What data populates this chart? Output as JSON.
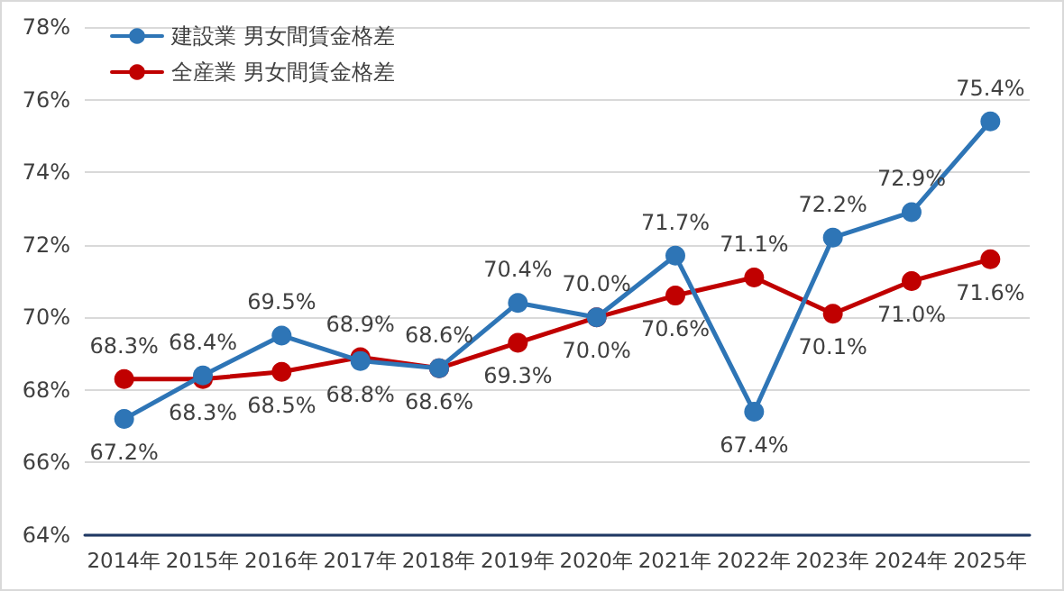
{
  "chart_data": {
    "type": "line",
    "categories": [
      "2014年",
      "2015年",
      "2016年",
      "2017年",
      "2018年",
      "2019年",
      "2020年",
      "2021年",
      "2022年",
      "2023年",
      "2024年",
      "2025年"
    ],
    "series": [
      {
        "name": "建設業 男女間賃金格差",
        "color": "#2e75b6",
        "values": [
          67.2,
          68.4,
          69.5,
          68.8,
          68.6,
          70.4,
          70.0,
          71.7,
          67.4,
          72.2,
          72.9,
          75.4
        ],
        "value_labels": [
          "67.2%",
          "68.4%",
          "69.5%",
          "68.8%",
          "68.6%",
          "70.4%",
          "70.0%",
          "71.7%",
          "67.4%",
          "72.2%",
          "72.9%",
          "75.4%"
        ]
      },
      {
        "name": "全産業 男女間賃金格差",
        "color": "#c00000",
        "values": [
          68.3,
          68.3,
          68.5,
          68.9,
          68.6,
          69.3,
          70.0,
          70.6,
          71.1,
          70.1,
          71.0,
          71.6
        ],
        "value_labels": [
          "68.3%",
          "68.3%",
          "68.5%",
          "68.9%",
          "68.6%",
          "69.3%",
          "70.0%",
          "70.6%",
          "71.1%",
          "70.1%",
          "71.0%",
          "71.6%"
        ]
      }
    ],
    "ylim": [
      64,
      78
    ],
    "yticks": [
      {
        "value": 64,
        "label": "64%"
      },
      {
        "value": 66,
        "label": "66%"
      },
      {
        "value": 68,
        "label": "68%"
      },
      {
        "value": 70,
        "label": "70%"
      },
      {
        "value": 72,
        "label": "72%"
      },
      {
        "value": 74,
        "label": "74%"
      },
      {
        "value": 76,
        "label": "76%"
      },
      {
        "value": 78,
        "label": "78%"
      }
    ],
    "grid": "y",
    "legend": "top left",
    "marker": "circle",
    "line_style": "solid"
  }
}
